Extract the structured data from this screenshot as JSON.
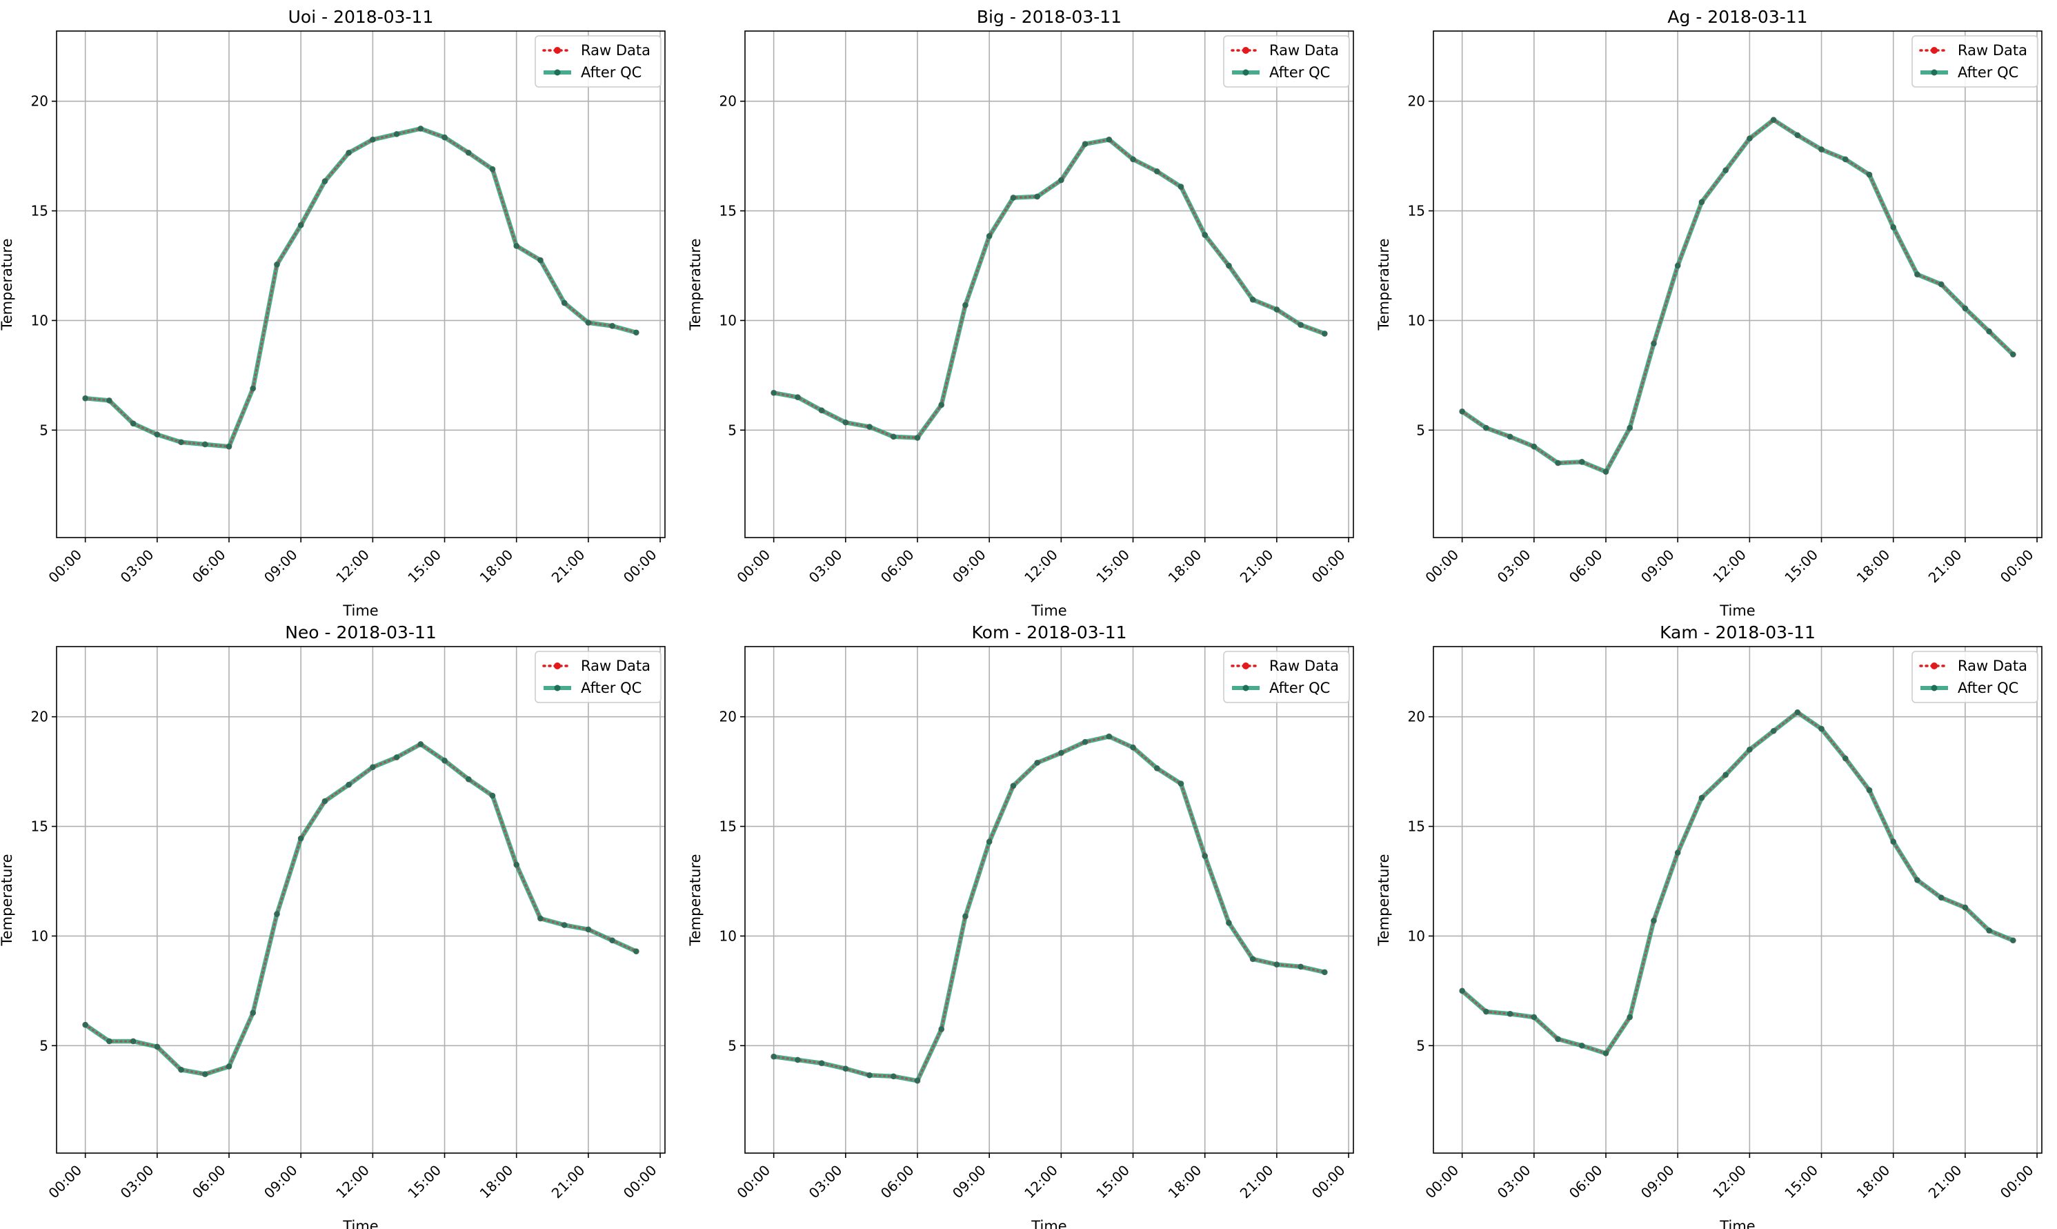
{
  "figure": {
    "x_ticks": [
      "00:00",
      "03:00",
      "06:00",
      "09:00",
      "12:00",
      "15:00",
      "18:00",
      "21:00",
      "00:00"
    ],
    "y_ticks": [
      5,
      10,
      15,
      20
    ]
  },
  "legend": {
    "raw_label": "Raw Data",
    "qc_label": "After QC",
    "raw_color": "#e31a1c",
    "qc_color": "#2a9d7a",
    "marker_color": "#1f6e5a"
  },
  "chart_data": [
    {
      "type": "line",
      "title": "Uoi - 2018-03-11",
      "xlabel": "Time",
      "ylabel": "Temperature",
      "x_hours": [
        0,
        1,
        2,
        3,
        4,
        5,
        6,
        7,
        8,
        9,
        10,
        11,
        12,
        13,
        14,
        15,
        16,
        17,
        18,
        19,
        20,
        21,
        22,
        23
      ],
      "xlim_hours": [
        -1.2,
        24.2
      ],
      "ylim": [
        0.1,
        23.2
      ],
      "grid": true,
      "legend_position": "top-right",
      "series": [
        {
          "name": "Raw Data",
          "values": [
            6.45,
            6.35,
            5.3,
            4.8,
            4.45,
            4.35,
            4.25,
            6.9,
            12.55,
            14.35,
            16.35,
            17.65,
            18.25,
            18.5,
            18.75,
            18.35,
            17.65,
            16.9,
            13.4,
            12.75,
            10.8,
            9.9,
            9.75,
            9.45
          ]
        },
        {
          "name": "After QC",
          "values": [
            6.45,
            6.35,
            5.3,
            4.8,
            4.45,
            4.35,
            4.25,
            6.9,
            12.55,
            14.35,
            16.35,
            17.65,
            18.25,
            18.5,
            18.75,
            18.35,
            17.65,
            16.9,
            13.4,
            12.75,
            10.8,
            9.9,
            9.75,
            9.45
          ]
        }
      ]
    },
    {
      "type": "line",
      "title": "Big - 2018-03-11",
      "xlabel": "Time",
      "ylabel": "Temperature",
      "x_hours": [
        0,
        1,
        2,
        3,
        4,
        5,
        6,
        7,
        8,
        9,
        10,
        11,
        12,
        13,
        14,
        15,
        16,
        17,
        18,
        19,
        20,
        21,
        22,
        23
      ],
      "xlim_hours": [
        -1.2,
        24.2
      ],
      "ylim": [
        0.1,
        23.2
      ],
      "grid": true,
      "legend_position": "top-right",
      "series": [
        {
          "name": "Raw Data",
          "values": [
            6.7,
            6.5,
            5.9,
            5.35,
            5.15,
            4.7,
            4.65,
            6.15,
            10.7,
            13.85,
            15.6,
            15.65,
            16.4,
            18.05,
            18.25,
            17.35,
            16.8,
            16.1,
            13.9,
            12.5,
            10.95,
            10.5,
            9.8,
            9.4
          ]
        },
        {
          "name": "After QC",
          "values": [
            6.7,
            6.5,
            5.9,
            5.35,
            5.15,
            4.7,
            4.65,
            6.15,
            10.7,
            13.85,
            15.6,
            15.65,
            16.4,
            18.05,
            18.25,
            17.35,
            16.8,
            16.1,
            13.9,
            12.5,
            10.95,
            10.5,
            9.8,
            9.4
          ]
        }
      ]
    },
    {
      "type": "line",
      "title": "Ag - 2018-03-11",
      "xlabel": "Time",
      "ylabel": "Temperature",
      "x_hours": [
        0,
        1,
        2,
        3,
        4,
        5,
        6,
        7,
        8,
        9,
        10,
        11,
        12,
        13,
        14,
        15,
        16,
        17,
        18,
        19,
        20,
        21,
        22,
        23
      ],
      "xlim_hours": [
        -1.2,
        24.2
      ],
      "ylim": [
        0.1,
        23.2
      ],
      "grid": true,
      "legend_position": "top-right",
      "series": [
        {
          "name": "Raw Data",
          "values": [
            5.85,
            5.1,
            4.7,
            4.25,
            3.5,
            3.55,
            3.1,
            5.1,
            8.95,
            12.5,
            15.4,
            16.85,
            18.3,
            19.15,
            18.45,
            17.8,
            17.35,
            16.65,
            14.25,
            12.1,
            11.65,
            10.55,
            9.5,
            8.45
          ]
        },
        {
          "name": "After QC",
          "values": [
            5.85,
            5.1,
            4.7,
            4.25,
            3.5,
            3.55,
            3.1,
            5.1,
            8.95,
            12.5,
            15.4,
            16.85,
            18.3,
            19.15,
            18.45,
            17.8,
            17.35,
            16.65,
            14.25,
            12.1,
            11.65,
            10.55,
            9.5,
            8.45
          ]
        }
      ]
    },
    {
      "type": "line",
      "title": "Neo - 2018-03-11",
      "xlabel": "Time",
      "ylabel": "Temperature",
      "x_hours": [
        0,
        1,
        2,
        3,
        4,
        5,
        6,
        7,
        8,
        9,
        10,
        11,
        12,
        13,
        14,
        15,
        16,
        17,
        18,
        19,
        20,
        21,
        22,
        23
      ],
      "xlim_hours": [
        -1.2,
        24.2
      ],
      "ylim": [
        0.1,
        23.2
      ],
      "grid": true,
      "legend_position": "top-right",
      "series": [
        {
          "name": "Raw Data",
          "values": [
            5.95,
            5.2,
            5.2,
            4.95,
            3.9,
            3.7,
            4.05,
            6.5,
            11.0,
            14.45,
            16.15,
            16.9,
            17.7,
            18.15,
            18.75,
            18.0,
            17.15,
            16.4,
            13.25,
            10.8,
            10.5,
            10.3,
            9.8,
            9.3
          ]
        },
        {
          "name": "After QC",
          "values": [
            5.95,
            5.2,
            5.2,
            4.95,
            3.9,
            3.7,
            4.05,
            6.5,
            11.0,
            14.45,
            16.15,
            16.9,
            17.7,
            18.15,
            18.75,
            18.0,
            17.15,
            16.4,
            13.25,
            10.8,
            10.5,
            10.3,
            9.8,
            9.3
          ]
        }
      ]
    },
    {
      "type": "line",
      "title": "Kom - 2018-03-11",
      "xlabel": "Time",
      "ylabel": "Temperature",
      "x_hours": [
        0,
        1,
        2,
        3,
        4,
        5,
        6,
        7,
        8,
        9,
        10,
        11,
        12,
        13,
        14,
        15,
        16,
        17,
        18,
        19,
        20,
        21,
        22,
        23
      ],
      "xlim_hours": [
        -1.2,
        24.2
      ],
      "ylim": [
        0.1,
        23.2
      ],
      "grid": true,
      "legend_position": "top-right",
      "series": [
        {
          "name": "Raw Data",
          "values": [
            4.5,
            4.35,
            4.2,
            3.95,
            3.65,
            3.6,
            3.4,
            5.75,
            10.9,
            14.3,
            16.85,
            17.9,
            18.35,
            18.85,
            19.1,
            18.6,
            17.65,
            16.95,
            13.65,
            10.6,
            8.95,
            8.7,
            8.6,
            8.35
          ]
        },
        {
          "name": "After QC",
          "values": [
            4.5,
            4.35,
            4.2,
            3.95,
            3.65,
            3.6,
            3.4,
            5.75,
            10.9,
            14.3,
            16.85,
            17.9,
            18.35,
            18.85,
            19.1,
            18.6,
            17.65,
            16.95,
            13.65,
            10.6,
            8.95,
            8.7,
            8.6,
            8.35
          ]
        }
      ]
    },
    {
      "type": "line",
      "title": "Kam - 2018-03-11",
      "xlabel": "Time",
      "ylabel": "Temperature",
      "x_hours": [
        0,
        1,
        2,
        3,
        4,
        5,
        6,
        7,
        8,
        9,
        10,
        11,
        12,
        13,
        14,
        15,
        16,
        17,
        18,
        19,
        20,
        21,
        22,
        23
      ],
      "xlim_hours": [
        -1.2,
        24.2
      ],
      "ylim": [
        0.1,
        23.2
      ],
      "grid": true,
      "legend_position": "top-right",
      "series": [
        {
          "name": "Raw Data",
          "values": [
            7.5,
            6.55,
            6.45,
            6.3,
            5.3,
            5.0,
            4.65,
            6.3,
            10.7,
            13.8,
            16.3,
            17.35,
            18.5,
            19.35,
            20.2,
            19.45,
            18.1,
            16.65,
            14.3,
            12.55,
            11.75,
            11.3,
            10.25,
            9.8
          ]
        },
        {
          "name": "After QC",
          "values": [
            7.5,
            6.55,
            6.45,
            6.3,
            5.3,
            5.0,
            4.65,
            6.3,
            10.7,
            13.8,
            16.3,
            17.35,
            18.5,
            19.35,
            20.2,
            19.45,
            18.1,
            16.65,
            14.3,
            12.55,
            11.75,
            11.3,
            10.25,
            9.8
          ]
        }
      ]
    }
  ]
}
